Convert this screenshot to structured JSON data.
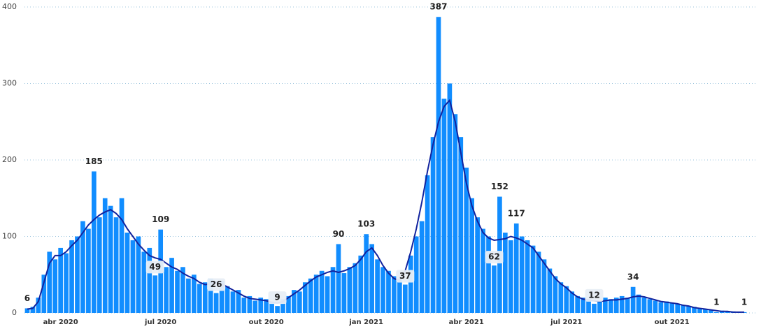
{
  "chart_data": {
    "type": "bar",
    "categories": [
      null,
      null,
      null,
      null,
      null,
      null,
      "abr 2020",
      null,
      null,
      null,
      null,
      null,
      null,
      null,
      null,
      null,
      null,
      null,
      null,
      null,
      null,
      null,
      null,
      null,
      "jul 2020",
      null,
      null,
      null,
      null,
      null,
      null,
      null,
      null,
      null,
      null,
      null,
      null,
      null,
      null,
      null,
      null,
      null,
      null,
      "out 2020",
      null,
      null,
      null,
      null,
      null,
      null,
      null,
      null,
      null,
      null,
      null,
      null,
      null,
      null,
      null,
      null,
      null,
      "jan 2021",
      null,
      null,
      null,
      null,
      null,
      null,
      null,
      null,
      null,
      null,
      null,
      null,
      null,
      null,
      null,
      null,
      null,
      "abr 2021",
      null,
      null,
      null,
      null,
      null,
      null,
      null,
      null,
      null,
      null,
      null,
      null,
      null,
      null,
      null,
      null,
      null,
      "jul 2021",
      null,
      null,
      null,
      null,
      null,
      null,
      null,
      null,
      null,
      null,
      null,
      null,
      null,
      null,
      null,
      null,
      null,
      null,
      "out 2021",
      null,
      null,
      null,
      null,
      null,
      null,
      null,
      null,
      null,
      null,
      null,
      null,
      null
    ],
    "series": [
      {
        "type": "bar",
        "color": "#118dff",
        "values": [
          6,
          8,
          20,
          50,
          80,
          70,
          85,
          78,
          95,
          100,
          120,
          110,
          185,
          125,
          150,
          140,
          125,
          150,
          105,
          95,
          100,
          80,
          85,
          49,
          109,
          60,
          72,
          55,
          60,
          45,
          50,
          38,
          40,
          45,
          26,
          42,
          35,
          28,
          30,
          20,
          22,
          16,
          20,
          18,
          15,
          9,
          18,
          22,
          30,
          28,
          40,
          45,
          50,
          55,
          48,
          60,
          90,
          52,
          60,
          65,
          75,
          103,
          90,
          70,
          60,
          55,
          48,
          45,
          37,
          75,
          100,
          120,
          180,
          230,
          387,
          280,
          300,
          260,
          230,
          190,
          150,
          125,
          110,
          100,
          62,
          152,
          105,
          95,
          117,
          100,
          95,
          88,
          80,
          70,
          58,
          48,
          40,
          35,
          28,
          22,
          20,
          18,
          12,
          15,
          20,
          18,
          20,
          22,
          20,
          34,
          24,
          20,
          18,
          16,
          14,
          15,
          13,
          12,
          10,
          9,
          8,
          6,
          5,
          4,
          1,
          3,
          2,
          2,
          1,
          1
        ],
        "value_labels": [
          "6",
          null,
          null,
          null,
          null,
          null,
          null,
          null,
          null,
          null,
          null,
          null,
          "185",
          null,
          null,
          null,
          null,
          null,
          null,
          null,
          null,
          null,
          null,
          "49",
          "109",
          null,
          null,
          null,
          null,
          null,
          null,
          null,
          null,
          null,
          "26",
          null,
          null,
          null,
          null,
          null,
          null,
          null,
          null,
          null,
          null,
          "9",
          null,
          null,
          null,
          null,
          null,
          null,
          null,
          null,
          null,
          null,
          "90",
          null,
          null,
          null,
          null,
          "103",
          null,
          null,
          null,
          null,
          null,
          null,
          "37",
          null,
          null,
          null,
          null,
          null,
          "387",
          null,
          null,
          null,
          null,
          null,
          null,
          null,
          null,
          null,
          "62",
          "152",
          null,
          null,
          "117",
          null,
          null,
          null,
          null,
          null,
          null,
          null,
          null,
          null,
          null,
          null,
          null,
          null,
          "12",
          null,
          null,
          null,
          null,
          null,
          null,
          "34",
          null,
          null,
          null,
          null,
          null,
          null,
          null,
          null,
          null,
          null,
          null,
          null,
          null,
          null,
          "1",
          null,
          null,
          null,
          null,
          "1"
        ]
      },
      {
        "type": "line",
        "color": "#12239e",
        "values": [
          5,
          6,
          15,
          40,
          65,
          75,
          75,
          80,
          88,
          95,
          105,
          115,
          122,
          128,
          132,
          135,
          130,
          122,
          110,
          100,
          90,
          82,
          75,
          72,
          70,
          65,
          60,
          57,
          52,
          48,
          45,
          40,
          37,
          38,
          40,
          38,
          34,
          30,
          26,
          22,
          19,
          18,
          17,
          16,
          14,
          13,
          15,
          20,
          25,
          30,
          36,
          42,
          47,
          50,
          53,
          55,
          53,
          55,
          58,
          62,
          70,
          80,
          85,
          75,
          62,
          52,
          45,
          42,
          55,
          80,
          110,
          145,
          185,
          220,
          250,
          270,
          278,
          250,
          210,
          170,
          140,
          120,
          105,
          98,
          95,
          96,
          97,
          100,
          98,
          95,
          90,
          85,
          75,
          65,
          55,
          45,
          38,
          33,
          26,
          21,
          18,
          17,
          16,
          15,
          16,
          17,
          17,
          18,
          19,
          21,
          22,
          21,
          19,
          17,
          15,
          14,
          13,
          12,
          10,
          9,
          7,
          6,
          5,
          4,
          3,
          2,
          2,
          1,
          1,
          1
        ]
      }
    ],
    "ylim": [
      0,
      400
    ],
    "yticks": [
      0,
      100,
      200,
      300,
      400
    ],
    "grid": true
  }
}
